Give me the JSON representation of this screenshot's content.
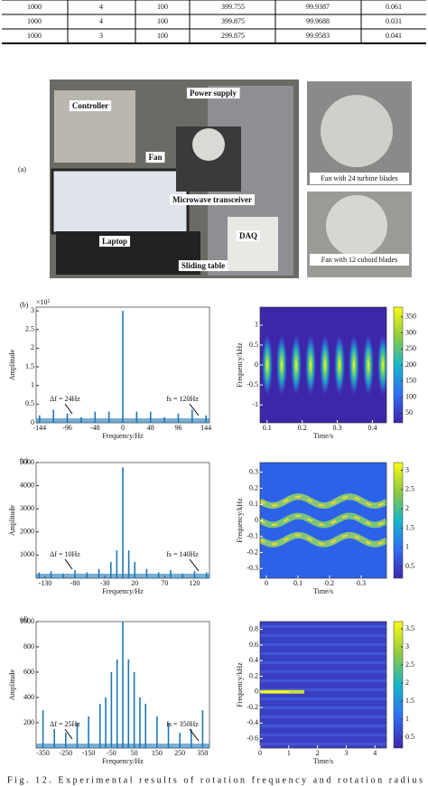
{
  "table": {
    "rows": [
      [
        "1000",
        "4",
        "100",
        "399.755",
        "99.9387",
        "0.061"
      ],
      [
        "1000",
        "4",
        "100",
        "399.875",
        "99.9688",
        "0.031"
      ],
      [
        "1000",
        "3",
        "100",
        "299.875",
        "99.9583",
        "0.041"
      ]
    ]
  },
  "photo": {
    "panel": "(a)",
    "labels": [
      "Controller",
      "Power supply",
      "Fan",
      "Microwave transceiver",
      "Laptop",
      "DAQ",
      "Sliding table"
    ],
    "insets": [
      "Fan with 24 turbine blades",
      "Fan with 12 cuboid blades"
    ]
  },
  "figures": [
    {
      "panel": "(b)",
      "spectrum": {
        "type": "stem",
        "multiplier": "×10⁵",
        "xlabel": "Frequency/Hz",
        "ylabel": "Amplitude",
        "color": "#1f77b4",
        "x": [
          -144,
          -120,
          -96,
          -72,
          -48,
          -24,
          0,
          24,
          48,
          72,
          96,
          120,
          144
        ],
        "values": [
          0.2,
          0.35,
          0.25,
          0.15,
          0.3,
          0.3,
          3,
          0.3,
          0.3,
          0.15,
          0.25,
          0.35,
          0.2
        ],
        "xlim": [
          -150,
          150
        ],
        "ylim": [
          0,
          3.1
        ],
        "xticks": [
          -144,
          -96,
          -48,
          0,
          48,
          96,
          144
        ],
        "yticks": [
          0,
          0.5,
          1,
          1.5,
          2,
          2.5,
          3
        ],
        "annotations": [
          "Δf = 24Hz",
          "fs = 120Hz"
        ]
      },
      "spectrogram": {
        "type": "heatmap",
        "xlabel": "Time/s",
        "ylabel": "Frequency/kHz",
        "xlim": [
          0.08,
          0.44
        ],
        "ylim": [
          -1.45,
          1.45
        ],
        "xticks": [
          0.1,
          0.2,
          0.3,
          0.4
        ],
        "yticks": [
          -1,
          -0.5,
          0,
          0.5,
          1
        ],
        "clim": [
          20,
          380
        ],
        "cticks": [
          50,
          100,
          150,
          200,
          250,
          300,
          350
        ]
      }
    },
    {
      "panel": "(c)",
      "spectrum": {
        "type": "stem",
        "xlabel": "Frequency/Hz",
        "ylabel": "Amplitude",
        "color": "#1f77b4",
        "x": [
          -140,
          -120,
          -100,
          -80,
          -60,
          -40,
          -20,
          -10,
          0,
          10,
          20,
          40,
          60,
          80,
          100,
          120,
          140
        ],
        "values": [
          250,
          300,
          200,
          350,
          250,
          400,
          700,
          1200,
          4800,
          1200,
          700,
          400,
          250,
          350,
          200,
          300,
          250
        ],
        "xlim": [
          -145,
          145
        ],
        "ylim": [
          0,
          5000
        ],
        "xticks": [
          -130,
          -80,
          -30,
          20,
          70,
          120
        ],
        "yticks": [
          1000,
          2000,
          3000,
          4000,
          5000
        ],
        "annotations": [
          "Δf = 10Hz",
          "fs = 140Hz"
        ]
      },
      "spectrogram": {
        "type": "heatmap",
        "xlabel": "Time/s",
        "ylabel": "Frequency/kHz",
        "xlim": [
          -0.02,
          0.38
        ],
        "ylim": [
          -0.36,
          0.36
        ],
        "xticks": [
          0,
          0.1,
          0.2,
          0.3
        ],
        "yticks": [
          -0.3,
          -0.2,
          -0.1,
          0,
          0.1,
          0.2,
          0.3
        ],
        "clim": [
          0.2,
          3.2
        ],
        "cticks": [
          0.5,
          1,
          1.5,
          2,
          2.5,
          3
        ]
      }
    },
    {
      "panel": "(d)",
      "spectrum": {
        "type": "stem",
        "xlabel": "Frequency/Hz",
        "ylabel": "Amplitude",
        "color": "#1f77b4",
        "x": [
          -350,
          -300,
          -250,
          -200,
          -150,
          -100,
          -75,
          -50,
          -25,
          0,
          25,
          50,
          75,
          100,
          150,
          200,
          250,
          300,
          350
        ],
        "values": [
          300,
          150,
          120,
          200,
          250,
          350,
          400,
          600,
          700,
          1000,
          700,
          600,
          400,
          350,
          250,
          200,
          120,
          150,
          300
        ],
        "xlim": [
          -380,
          380
        ],
        "ylim": [
          0,
          1000
        ],
        "xticks": [
          -350,
          -250,
          -150,
          -50,
          50,
          150,
          250,
          350
        ],
        "yticks": [
          200,
          400,
          600,
          800,
          1000
        ],
        "annotations": [
          "Δf = 25Hz",
          "fs = 350Hz"
        ]
      },
      "spectrogram": {
        "type": "heatmap",
        "xlabel": "Time/s",
        "ylabel": "Frequency/kHz",
        "xlim": [
          0,
          4.4
        ],
        "ylim": [
          -0.72,
          0.9
        ],
        "xticks": [
          0,
          1,
          2,
          3,
          4
        ],
        "yticks": [
          -0.6,
          -0.4,
          -0.2,
          0,
          0.2,
          0.4,
          0.6,
          0.8
        ],
        "clim": [
          0.2,
          3.7
        ],
        "cticks": [
          0.5,
          1,
          1.5,
          2,
          2.5,
          3,
          3.5
        ]
      }
    }
  ],
  "caption": "Fig. 12.    Experimental results of rotation frequency and rotation radius"
}
